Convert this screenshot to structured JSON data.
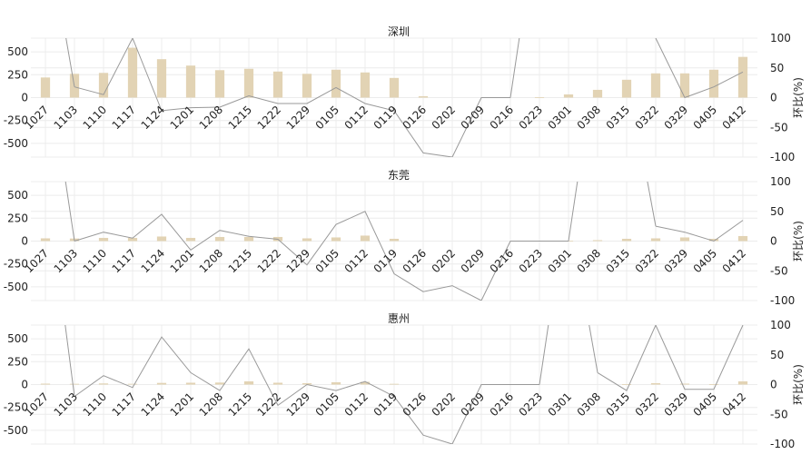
{
  "chart_data": [
    {
      "type": "bar",
      "title": "深圳",
      "categories": [
        "1027",
        "1103",
        "1110",
        "1117",
        "1124",
        "1201",
        "1208",
        "1215",
        "1222",
        "1229",
        "0105",
        "0112",
        "0119",
        "0126",
        "0202",
        "0209",
        "0216",
        "0223",
        "0301",
        "0308",
        "0315",
        "0322",
        "0329",
        "0405",
        "0412"
      ],
      "bar_values": [
        220,
        260,
        270,
        545,
        420,
        350,
        300,
        315,
        285,
        260,
        305,
        275,
        215,
        15,
        0,
        0,
        0,
        5,
        35,
        85,
        195,
        265,
        265,
        305,
        445
      ],
      "line_values": [
        null,
        18,
        5,
        100,
        -22,
        -17,
        -16,
        3,
        -10,
        -10,
        17,
        -10,
        -22,
        -93,
        -100,
        0,
        0,
        null,
        null,
        null,
        null,
        100,
        0,
        18,
        43
      ],
      "ylim_left": [
        -650,
        650
      ],
      "ylim_right": [
        -100,
        100
      ],
      "yticks_left": [
        500,
        250,
        0,
        -250,
        -500
      ],
      "yticks_right": [
        100,
        50,
        0,
        -50,
        -100
      ],
      "ylabel_right": "环比(%)",
      "bar_color": "#e2d3b4",
      "line_color": "#999999"
    },
    {
      "type": "bar",
      "title": "东莞",
      "categories": [
        "1027",
        "1103",
        "1110",
        "1117",
        "1124",
        "1201",
        "1208",
        "1215",
        "1222",
        "1229",
        "0105",
        "0112",
        "0119",
        "0126",
        "0202",
        "0209",
        "0216",
        "0223",
        "0301",
        "0308",
        "0315",
        "0322",
        "0329",
        "0405",
        "0412"
      ],
      "bar_values": [
        30,
        28,
        35,
        35,
        50,
        35,
        45,
        45,
        45,
        30,
        40,
        60,
        25,
        0,
        0,
        0,
        0,
        0,
        5,
        10,
        25,
        30,
        40,
        25,
        55
      ],
      "line_values": [
        null,
        0,
        15,
        5,
        45,
        -15,
        18,
        8,
        3,
        -40,
        28,
        50,
        -55,
        -85,
        -75,
        -100,
        0,
        0,
        0,
        null,
        null,
        25,
        15,
        0,
        35
      ],
      "ylim_left": [
        -650,
        650
      ],
      "ylim_right": [
        -100,
        100
      ],
      "yticks_left": [
        500,
        250,
        0,
        -250,
        -500
      ],
      "yticks_right": [
        100,
        50,
        0,
        -50,
        -100
      ],
      "ylabel_right": "环比(%)",
      "bar_color": "#e2d3b4",
      "line_color": "#999999"
    },
    {
      "type": "bar",
      "title": "惠州",
      "categories": [
        "1027",
        "1103",
        "1110",
        "1117",
        "1124",
        "1201",
        "1208",
        "1215",
        "1222",
        "1229",
        "0105",
        "0112",
        "0119",
        "0126",
        "0202",
        "0209",
        "0216",
        "0223",
        "0301",
        "0308",
        "0315",
        "0322",
        "0329",
        "0405",
        "0412"
      ],
      "bar_values": [
        10,
        8,
        12,
        8,
        18,
        20,
        22,
        35,
        20,
        15,
        25,
        30,
        8,
        0,
        0,
        0,
        0,
        0,
        0,
        0,
        5,
        15,
        10,
        5,
        35
      ],
      "line_values": [
        null,
        -20,
        15,
        -5,
        80,
        20,
        -10,
        60,
        -35,
        0,
        -10,
        5,
        -20,
        -85,
        -100,
        0,
        0,
        0,
        null,
        20,
        -10,
        100,
        -8,
        -8,
        100
      ],
      "ylim_left": [
        -650,
        650
      ],
      "ylim_right": [
        -100,
        100
      ],
      "yticks_left": [
        500,
        250,
        0,
        -250,
        -500
      ],
      "yticks_right": [
        100,
        50,
        0,
        -50,
        -100
      ],
      "ylabel_right": "环比(%)",
      "bar_color": "#e2d3b4",
      "line_color": "#999999"
    }
  ]
}
